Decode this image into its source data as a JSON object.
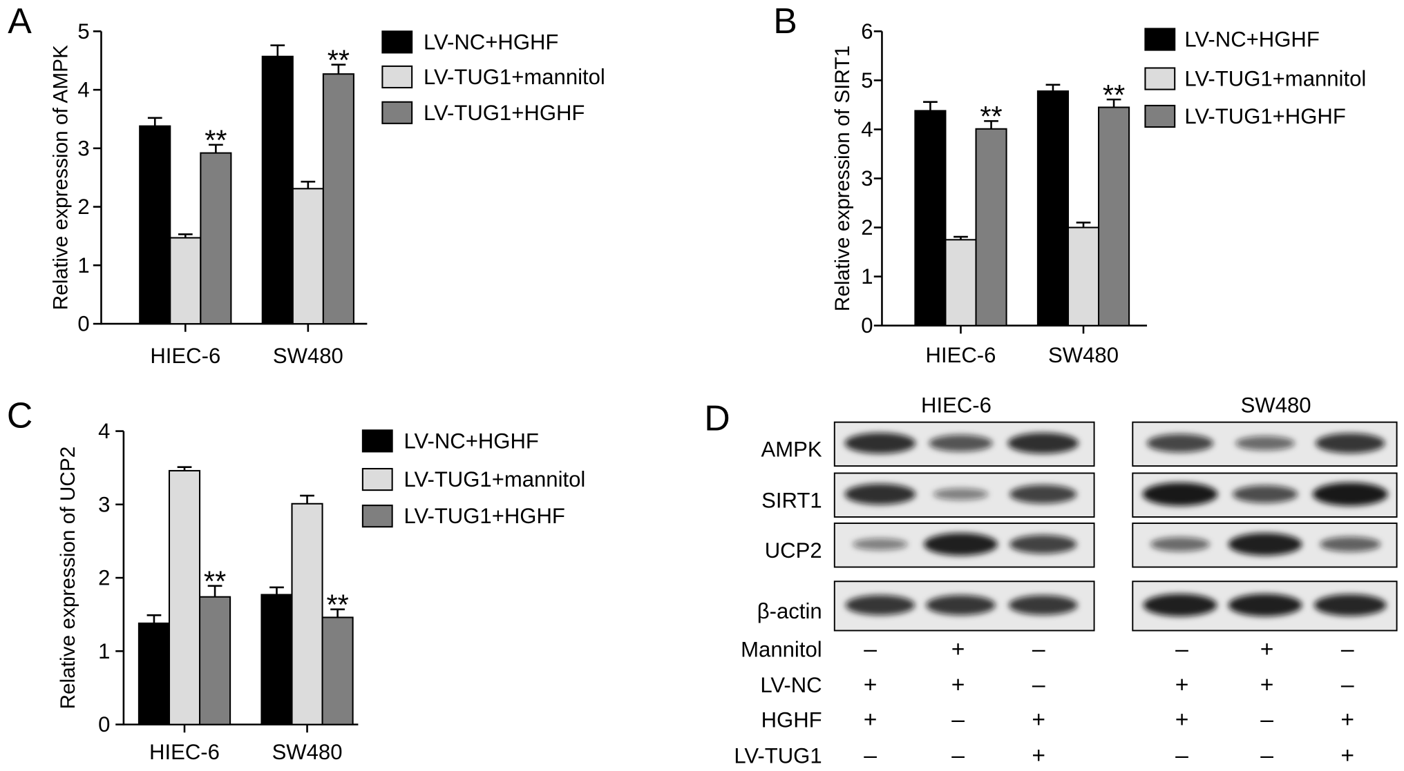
{
  "chart_data": [
    {
      "panel": "A",
      "type": "bar",
      "ylabel": "Relative expression of AMPK",
      "categories": [
        "HIEC-6",
        "SW480"
      ],
      "ylim": [
        0,
        5
      ],
      "yticks": [
        0,
        1,
        2,
        3,
        4,
        5
      ],
      "grid": false,
      "legend": "right",
      "series": [
        {
          "name": "LV-NC+HGHF",
          "color": "#000000",
          "values": [
            3.38,
            4.57
          ],
          "errors": [
            0.14,
            0.19
          ],
          "annotations": [
            "",
            ""
          ]
        },
        {
          "name": "LV-TUG1+mannitol",
          "color": "#dcdcdc",
          "values": [
            1.47,
            2.31
          ],
          "errors": [
            0.06,
            0.12
          ],
          "annotations": [
            "",
            ""
          ]
        },
        {
          "name": "LV-TUG1+HGHF",
          "color": "#7f7f7f",
          "values": [
            2.92,
            4.27
          ],
          "errors": [
            0.14,
            0.16
          ],
          "annotations": [
            "**",
            "**"
          ]
        }
      ]
    },
    {
      "panel": "B",
      "type": "bar",
      "ylabel": "Relative expression of SIRT1",
      "categories": [
        "HIEC-6",
        "SW480"
      ],
      "ylim": [
        0,
        6
      ],
      "yticks": [
        0,
        1,
        2,
        3,
        4,
        5,
        6
      ],
      "grid": false,
      "legend": "right",
      "series": [
        {
          "name": "LV-NC+HGHF",
          "color": "#000000",
          "values": [
            4.38,
            4.78
          ],
          "errors": [
            0.18,
            0.13
          ],
          "annotations": [
            "",
            ""
          ]
        },
        {
          "name": "LV-TUG1+mannitol",
          "color": "#dcdcdc",
          "values": [
            1.75,
            2.0
          ],
          "errors": [
            0.06,
            0.1
          ],
          "annotations": [
            "",
            ""
          ]
        },
        {
          "name": "LV-TUG1+HGHF",
          "color": "#7f7f7f",
          "values": [
            4.01,
            4.45
          ],
          "errors": [
            0.16,
            0.16
          ],
          "annotations": [
            "**",
            "**"
          ]
        }
      ]
    },
    {
      "panel": "C",
      "type": "bar",
      "ylabel": "Relative expression of UCP2",
      "categories": [
        "HIEC-6",
        "SW480"
      ],
      "ylim": [
        0,
        4
      ],
      "yticks": [
        0,
        1,
        2,
        3,
        4
      ],
      "grid": false,
      "legend": "right",
      "series": [
        {
          "name": "LV-NC+HGHF",
          "color": "#000000",
          "values": [
            1.38,
            1.77
          ],
          "errors": [
            0.11,
            0.1
          ],
          "annotations": [
            "",
            ""
          ]
        },
        {
          "name": "LV-TUG1+mannitol",
          "color": "#dcdcdc",
          "values": [
            3.46,
            3.01
          ],
          "errors": [
            0.05,
            0.11
          ],
          "annotations": [
            "",
            ""
          ]
        },
        {
          "name": "LV-TUG1+HGHF",
          "color": "#7f7f7f",
          "values": [
            1.74,
            1.46
          ],
          "errors": [
            0.15,
            0.11
          ],
          "annotations": [
            "**",
            "**"
          ]
        }
      ]
    }
  ],
  "blot": {
    "panel": "D",
    "groups": [
      {
        "name": "HIEC-6"
      },
      {
        "name": "SW480"
      }
    ],
    "rows": [
      {
        "label": "AMPK",
        "band_intensity": [
          [
            0.85,
            0.6,
            0.85
          ],
          [
            0.7,
            0.45,
            0.8
          ]
        ]
      },
      {
        "label": "SIRT1",
        "band_intensity": [
          [
            0.85,
            0.3,
            0.72
          ],
          [
            1.0,
            0.65,
            1.0
          ]
        ]
      },
      {
        "label": "UCP2",
        "band_intensity": [
          [
            0.3,
            0.95,
            0.72
          ],
          [
            0.45,
            0.95,
            0.5
          ]
        ]
      },
      {
        "label": "β-actin",
        "band_intensity": [
          [
            0.8,
            0.8,
            0.78
          ],
          [
            0.95,
            0.95,
            0.9
          ]
        ]
      }
    ],
    "conditions": [
      {
        "label": "Mannitol",
        "signs": [
          "–",
          "+",
          "–",
          "–",
          "+",
          "–"
        ]
      },
      {
        "label": "LV-NC",
        "signs": [
          "+",
          "+",
          "–",
          "+",
          "+",
          "–"
        ]
      },
      {
        "label": "HGHF",
        "signs": [
          "+",
          "–",
          "+",
          "+",
          "–",
          "+"
        ]
      },
      {
        "label": "LV-TUG1",
        "signs": [
          "–",
          "–",
          "+",
          "–",
          "–",
          "+"
        ]
      }
    ]
  }
}
